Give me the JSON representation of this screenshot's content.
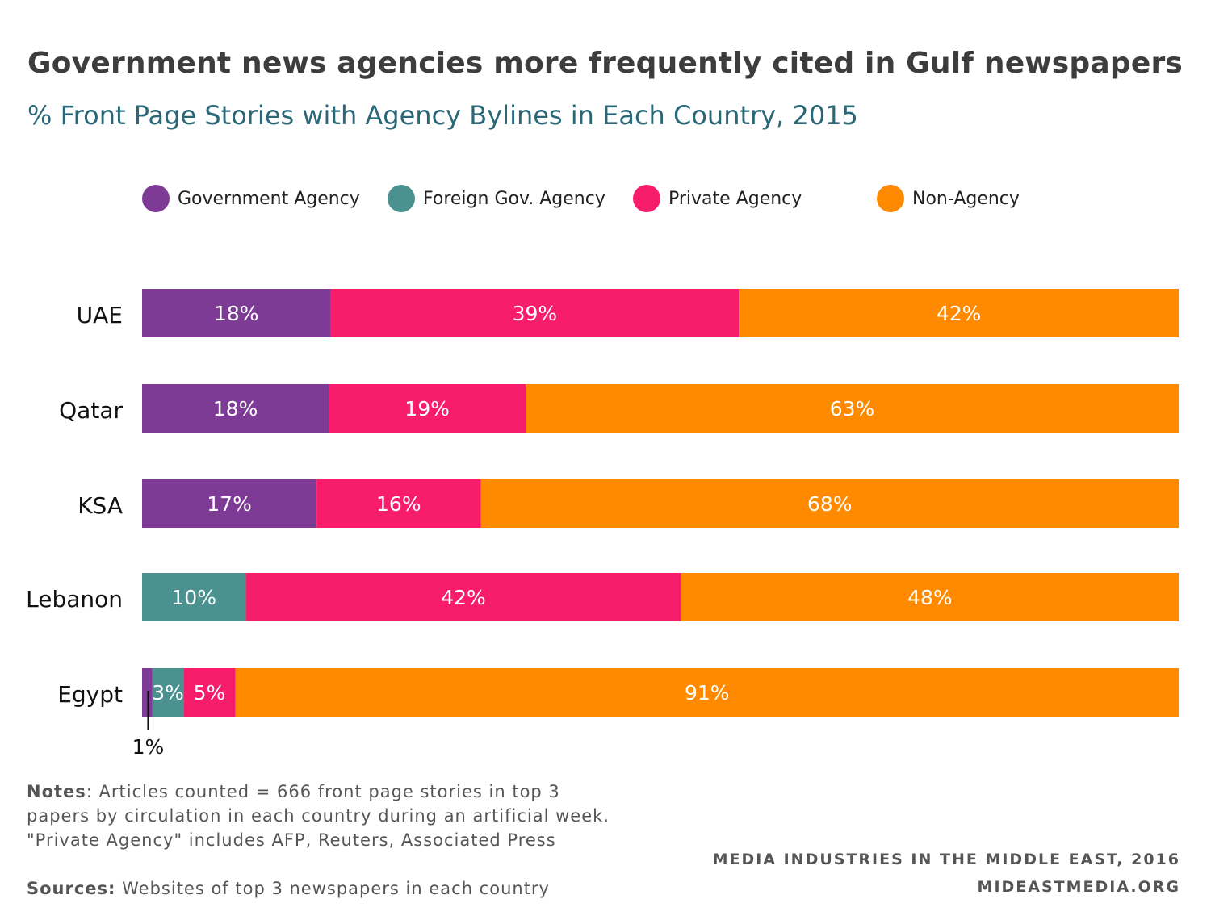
{
  "title": "Government news agencies more frequently cited in Gulf newspapers",
  "subtitle": "% Front Page Stories with Agency Bylines in Each Country, 2015",
  "legend": [
    {
      "label": "Government Agency",
      "color": "#7d3b96"
    },
    {
      "label": "Foreign Gov. Agency",
      "color": "#4a9190"
    },
    {
      "label": "Private Agency",
      "color": "#f71d6a"
    },
    {
      "label": "Non-Agency",
      "color": "#ff8a00"
    }
  ],
  "chart_data": {
    "type": "bar",
    "orientation": "horizontal",
    "stacked": true,
    "categories": [
      "UAE",
      "Qatar",
      "KSA",
      "Lebanon",
      "Egypt"
    ],
    "series": [
      {
        "name": "Government Agency",
        "color": "#7d3b96",
        "values": [
          18,
          18,
          17,
          0,
          1
        ],
        "labels": [
          "18%",
          "18%",
          "17%",
          "",
          "1%"
        ]
      },
      {
        "name": "Foreign Gov. Agency",
        "color": "#4a9190",
        "values": [
          0,
          0,
          0,
          10,
          3
        ],
        "labels": [
          "",
          "",
          "",
          "10%",
          "3%"
        ]
      },
      {
        "name": "Private Agency",
        "color": "#f71d6a",
        "values": [
          39,
          19,
          16,
          42,
          5
        ],
        "labels": [
          "39%",
          "19%",
          "16%",
          "42%",
          "5%"
        ]
      },
      {
        "name": "Non-Agency",
        "color": "#ff8a00",
        "values": [
          42,
          63,
          68,
          48,
          91
        ],
        "labels": [
          "42%",
          "63%",
          "68%",
          "48%",
          "91%"
        ]
      }
    ],
    "unit": "%",
    "xlim": [
      0,
      100
    ],
    "grid": false,
    "legend_position": "top"
  },
  "notes": {
    "notes_label": "Notes",
    "notes_text": ": Articles counted = 666 front page stories in top 3 papers by circulation in each country during an artificial week. \"Private Agency\" includes AFP, Reuters, Associated Press",
    "sources_label": "Sources:",
    "sources_text": " Websites of top 3 newspapers in each country"
  },
  "credit": {
    "line1": "MEDIA INDUSTRIES IN THE MIDDLE EAST, 2016",
    "line2": "MIDEASTMEDIA.ORG"
  }
}
